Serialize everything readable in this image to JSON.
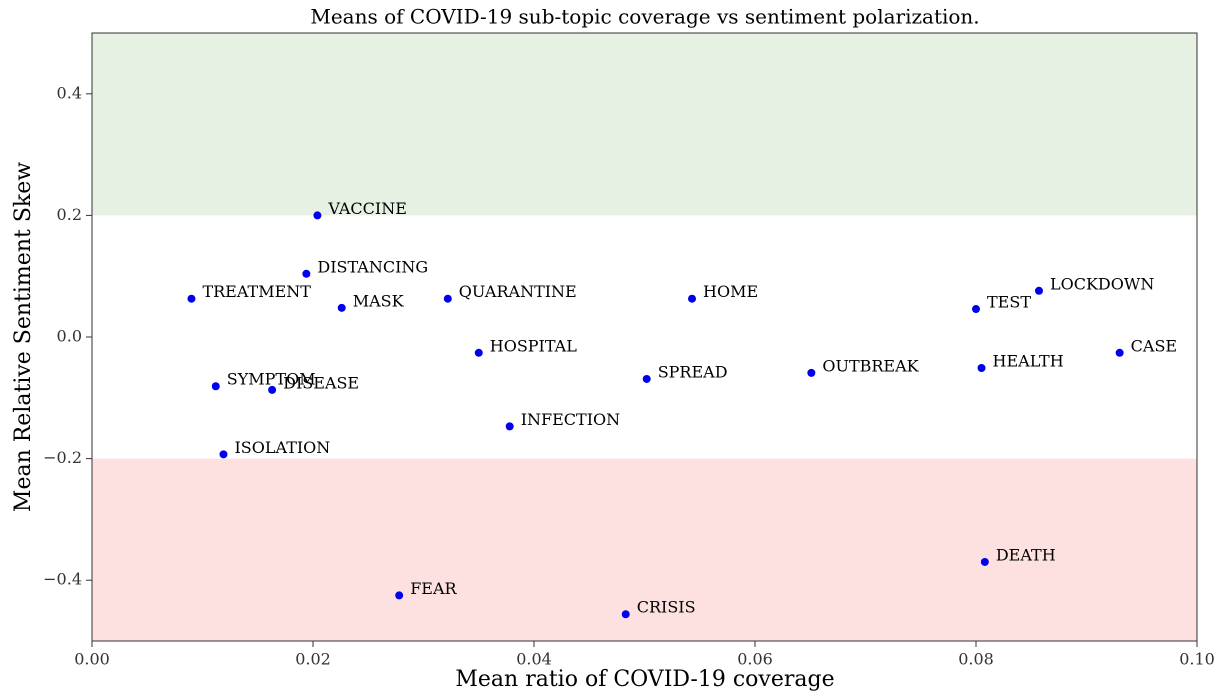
{
  "chart_data": {
    "type": "scatter",
    "title": "Means of COVID-19 sub-topic coverage vs sentiment polarization.",
    "xlabel": "Mean ratio of COVID-19 coverage",
    "ylabel": "Mean Relative Sentiment Skew",
    "xlim": [
      0,
      0.1
    ],
    "ylim": [
      -0.5,
      0.5
    ],
    "xticks": [
      {
        "value": 0,
        "label": "0.00"
      },
      {
        "value": 0.02,
        "label": "0.02"
      },
      {
        "value": 0.04,
        "label": "0.04"
      },
      {
        "value": 0.06,
        "label": "0.06"
      },
      {
        "value": 0.08,
        "label": "0.08"
      },
      {
        "value": 0.1,
        "label": "0.10"
      }
    ],
    "yticks": [
      {
        "value": -0.4,
        "label": "−0.4"
      },
      {
        "value": -0.2,
        "label": "−0.2"
      },
      {
        "value": 0,
        "label": "0.0"
      },
      {
        "value": 0.2,
        "label": "0.2"
      },
      {
        "value": 0.4,
        "label": "0.4"
      }
    ],
    "bands": [
      {
        "range": [
          0.2,
          0.5
        ],
        "color": "#e6f1e3"
      },
      {
        "range": [
          -0.5,
          -0.2
        ],
        "color": "#fde1e1"
      }
    ],
    "color": "#0000ee",
    "labels": [
      "VACCINE",
      "DISTANCING",
      "TREATMENT",
      "MASK",
      "QUARANTINE",
      "HOME",
      "TEST",
      "LOCKDOWN",
      "CASE",
      "HOSPITAL",
      "SYMPTOM",
      "DISEASE",
      "SPREAD",
      "OUTBREAK",
      "HEALTH",
      "INFECTION",
      "ISOLATION",
      "DEATH",
      "FEAR",
      "CRISIS"
    ],
    "x": [
      0.0204,
      0.0194,
      0.009,
      0.0226,
      0.0322,
      0.0543,
      0.08,
      0.0857,
      0.093,
      0.035,
      0.0112,
      0.0163,
      0.0502,
      0.0651,
      0.0805,
      0.0378,
      0.0119,
      0.0808,
      0.0278,
      0.0483
    ],
    "values": [
      0.2,
      0.104,
      0.063,
      0.048,
      0.063,
      0.063,
      0.046,
      0.076,
      -0.026,
      -0.026,
      -0.081,
      -0.087,
      -0.069,
      -0.059,
      -0.051,
      -0.147,
      -0.193,
      -0.37,
      -0.425,
      -0.456
    ]
  }
}
